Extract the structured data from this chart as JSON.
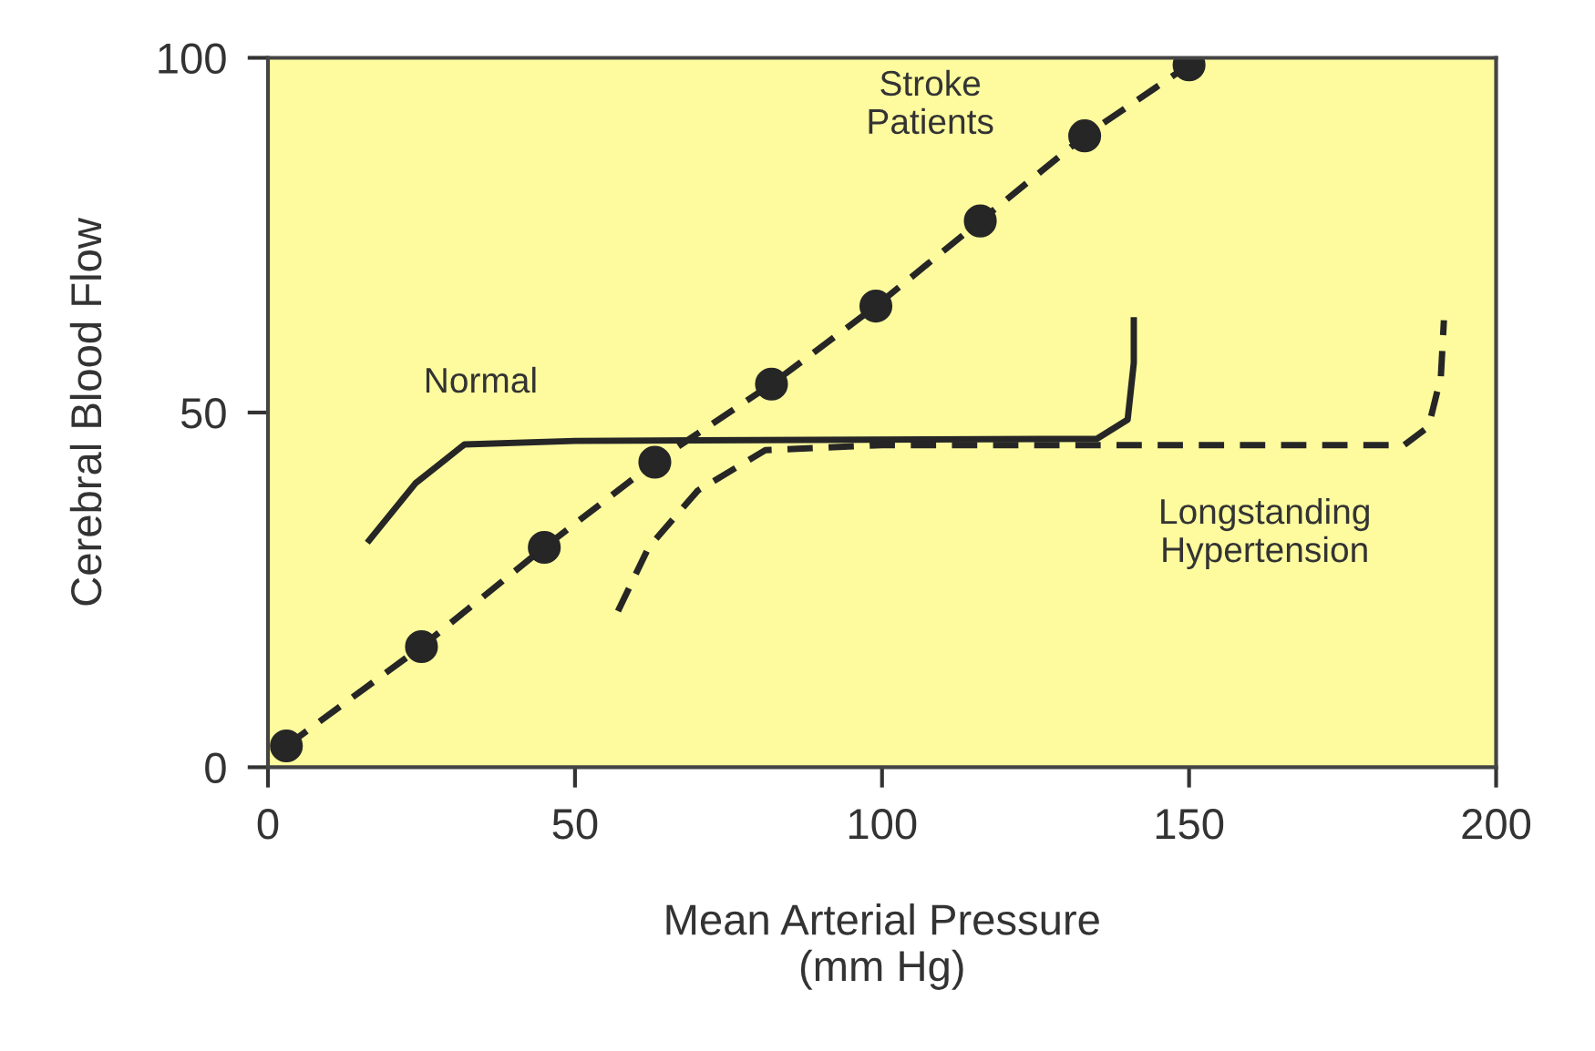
{
  "chart_data": {
    "type": "line",
    "xlabel": "Mean Arterial Pressure\n(mm Hg)",
    "ylabel": "Cerebral Blood Flow",
    "xlim": [
      0,
      200
    ],
    "ylim": [
      0,
      100
    ],
    "xticks": [
      0,
      50,
      100,
      150,
      200
    ],
    "yticks": [
      0,
      50,
      100
    ],
    "grid": false,
    "legend": false,
    "series": [
      {
        "name": "Stroke\nPatients",
        "color": "#262626",
        "x": [
          3,
          25,
          45,
          63,
          82,
          99,
          116,
          133,
          150
        ],
        "values": [
          3,
          17,
          31,
          43,
          54,
          65,
          77,
          89,
          99
        ],
        "marker": "circle",
        "line_style": "dashed"
      },
      {
        "name": "Normal",
        "color": "#262626",
        "x": [
          16.5,
          24,
          32,
          50,
          135,
          140,
          141,
          141
        ],
        "values": [
          32,
          40,
          45.5,
          46,
          46.3,
          49,
          57,
          63
        ],
        "marker": "none",
        "line_style": "solid"
      },
      {
        "name": "Longstanding\nHypertension",
        "color": "#262626",
        "x": [
          57,
          62,
          70,
          81,
          100,
          185,
          189,
          191,
          191.5
        ],
        "values": [
          22,
          31,
          39,
          44.7,
          45.4,
          45.4,
          48,
          55,
          63
        ],
        "marker": "none",
        "line_style": "dashed"
      }
    ]
  }
}
